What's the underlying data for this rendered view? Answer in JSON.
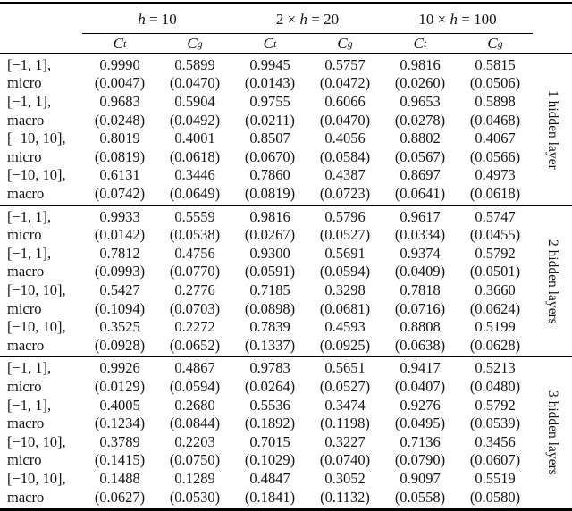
{
  "colors": {
    "text": "#131313",
    "rule": "#000000",
    "background": "#ffffff"
  },
  "table": {
    "group_headers": [
      {
        "pre": "",
        "var": "h",
        "post": " = 10"
      },
      {
        "pre": "2 × ",
        "var": "h",
        "post": " = 20"
      },
      {
        "pre": "10 × ",
        "var": "h",
        "post": " = 100"
      }
    ],
    "sub_headers": [
      {
        "base": "C",
        "sub": "t"
      },
      {
        "base": "C",
        "sub": "g"
      },
      {
        "base": "C",
        "sub": "t"
      },
      {
        "base": "C",
        "sub": "g"
      },
      {
        "base": "C",
        "sub": "t"
      },
      {
        "base": "C",
        "sub": "g"
      }
    ],
    "blocks": [
      {
        "side_label": "1 hidden layer",
        "rows": [
          {
            "label1": "[−1, 1],",
            "label2": "micro",
            "values": [
              "0.9990",
              "0.5899",
              "0.9945",
              "0.5757",
              "0.9816",
              "0.5815"
            ],
            "stds": [
              "(0.0047)",
              "(0.0470)",
              "(0.0143)",
              "(0.0472)",
              "(0.0260)",
              "(0.0506)"
            ]
          },
          {
            "label1": "[−1, 1],",
            "label2": "macro",
            "values": [
              "0.9683",
              "0.5904",
              "0.9755",
              "0.6066",
              "0.9653",
              "0.5898"
            ],
            "stds": [
              "(0.0248)",
              "(0.0492)",
              "(0.0211)",
              "(0.0470)",
              "(0.0278)",
              "(0.0468)"
            ]
          },
          {
            "label1": "[−10, 10],",
            "label2": "micro",
            "values": [
              "0.8019",
              "0.4001",
              "0.8507",
              "0.4056",
              "0.8802",
              "0.4067"
            ],
            "stds": [
              "(0.0819)",
              "(0.0618)",
              "(0.0670)",
              "(0.0584)",
              "(0.0567)",
              "(0.0566)"
            ]
          },
          {
            "label1": "[−10, 10],",
            "label2": "macro",
            "values": [
              "0.6131",
              "0.3446",
              "0.7860",
              "0.4387",
              "0.8697",
              "0.4973"
            ],
            "stds": [
              "(0.0742)",
              "(0.0649)",
              "(0.0819)",
              "(0.0723)",
              "(0.0641)",
              "(0.0618)"
            ]
          }
        ]
      },
      {
        "side_label": "2 hidden layers",
        "rows": [
          {
            "label1": "[−1, 1],",
            "label2": "micro",
            "values": [
              "0.9933",
              "0.5559",
              "0.9816",
              "0.5796",
              "0.9617",
              "0.5747"
            ],
            "stds": [
              "(0.0142)",
              "(0.0538)",
              "(0.0267)",
              "(0.0527)",
              "(0.0334)",
              "(0.0455)"
            ]
          },
          {
            "label1": "[−1, 1],",
            "label2": "macro",
            "values": [
              "0.7812",
              "0.4756",
              "0.9300",
              "0.5691",
              "0.9374",
              "0.5792"
            ],
            "stds": [
              "(0.0993)",
              "(0.0770)",
              "(0.0591)",
              "(0.0594)",
              "(0.0409)",
              "(0.0501)"
            ]
          },
          {
            "label1": "[−10, 10],",
            "label2": "micro",
            "values": [
              "0.5427",
              "0.2776",
              "0.7185",
              "0.3298",
              "0.7818",
              "0.3660"
            ],
            "stds": [
              "(0.1094)",
              "(0.0703)",
              "(0.0898)",
              "(0.0681)",
              "(0.0716)",
              "(0.0624)"
            ]
          },
          {
            "label1": "[−10, 10],",
            "label2": "macro",
            "values": [
              "0.3525",
              "0.2272",
              "0.7839",
              "0.4593",
              "0.8808",
              "0.5199"
            ],
            "stds": [
              "(0.0928)",
              "(0.0652)",
              "(0.1337)",
              "(0.0925)",
              "(0.0638)",
              "(0.0628)"
            ]
          }
        ]
      },
      {
        "side_label": "3 hidden layers",
        "rows": [
          {
            "label1": "[−1, 1],",
            "label2": "micro",
            "values": [
              "0.9926",
              "0.4867",
              "0.9783",
              "0.5651",
              "0.9417",
              "0.5213"
            ],
            "stds": [
              "(0.0129)",
              "(0.0594)",
              "(0.0264)",
              "(0.0527)",
              "(0.0407)",
              "(0.0480)"
            ]
          },
          {
            "label1": "[−1, 1],",
            "label2": "macro",
            "values": [
              "0.4005",
              "0.2680",
              "0.5536",
              "0.3474",
              "0.9276",
              "0.5792"
            ],
            "stds": [
              "(0.1234)",
              "(0.0844)",
              "(0.1892)",
              "(0.1198)",
              "(0.0495)",
              "(0.0539)"
            ]
          },
          {
            "label1": "[−10, 10],",
            "label2": "micro",
            "values": [
              "0.3789",
              "0.2203",
              "0.7015",
              "0.3227",
              "0.7136",
              "0.3456"
            ],
            "stds": [
              "(0.1415)",
              "(0.0750)",
              "(0.1029)",
              "(0.0740)",
              "(0.0790)",
              "(0.0607)"
            ]
          },
          {
            "label1": "[−10, 10],",
            "label2": "macro",
            "values": [
              "0.1488",
              "0.1289",
              "0.4847",
              "0.3052",
              "0.9097",
              "0.5519"
            ],
            "stds": [
              "(0.0627)",
              "(0.0530)",
              "(0.1841)",
              "(0.1132)",
              "(0.0558)",
              "(0.0580)"
            ]
          }
        ]
      }
    ]
  }
}
